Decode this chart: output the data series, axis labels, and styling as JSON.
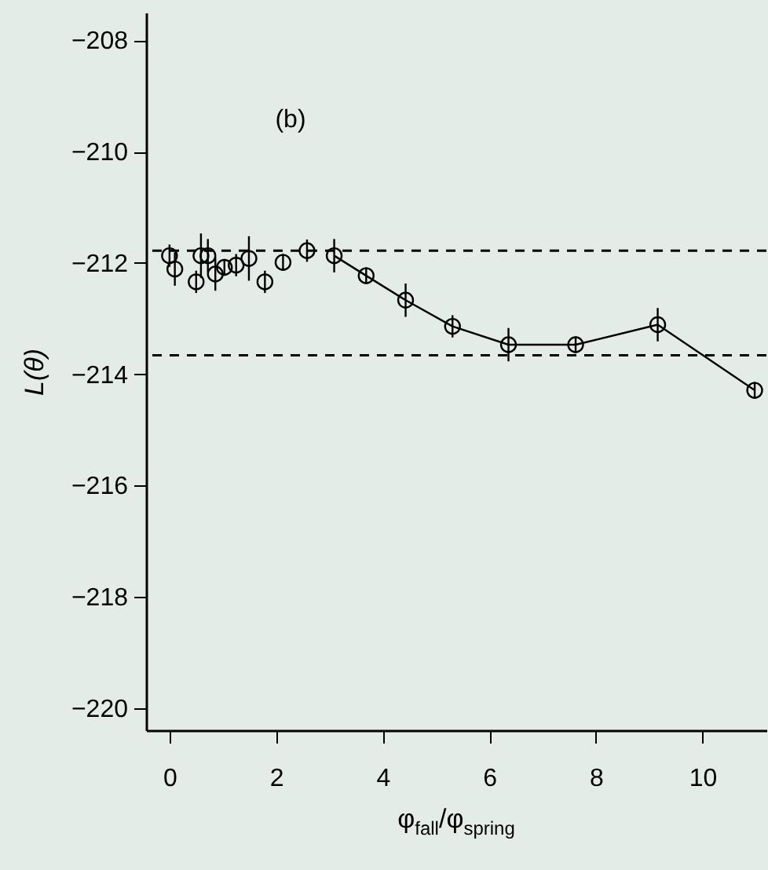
{
  "chart_data": {
    "type": "scatter",
    "xlabel": "φ$_{fall}$/φ$_{spring}$",
    "ylabel": "L(θ)",
    "annotations": [
      "(b)"
    ],
    "xlim": [
      -0.44,
      11.2
    ],
    "xticks": [
      0,
      2,
      4,
      6,
      8,
      10
    ],
    "ylim": [
      -220.4,
      -207.5
    ],
    "yticks": [
      -208,
      -210,
      -212,
      -214,
      -216,
      -218,
      -220
    ],
    "marker": "circle",
    "grid": false,
    "series": [
      {
        "color": "#000000",
        "x": [
          0,
          0.1,
          0.5,
          0.59,
          0.72,
          0.86,
          1.03,
          1.25,
          1.49,
          1.79,
          2.13,
          2.58,
          3.09,
          3.69,
          4.43,
          5.31,
          6.36,
          7.62,
          9.16,
          10.98
        ],
        "values": [
          -211.87,
          -212.11,
          -212.34,
          -211.87,
          -211.87,
          -212.2,
          -212.08,
          -212.04,
          -211.92,
          -212.34,
          -211.99,
          -211.78,
          -211.87,
          -212.23,
          -212.67,
          -213.14,
          -213.47,
          -213.47,
          -213.11,
          -214.29
        ],
        "errors": [
          0.2,
          0.3,
          0.2,
          0.4,
          0.3,
          0.3,
          0.15,
          0.2,
          0.4,
          0.2,
          0.15,
          0.2,
          0.3,
          0.15,
          0.3,
          0.2,
          0.3,
          0.15,
          0.3,
          0.15
        ]
      },
      {
        "type": "line",
        "color": "#000000",
        "marker": "none",
        "x": [
          3.09,
          3.69,
          4.43,
          5.31,
          6.36,
          7.62,
          9.16,
          10.98
        ],
        "values": [
          -211.87,
          -212.23,
          -212.67,
          -213.14,
          -213.47,
          -213.47,
          -213.11,
          -214.29
        ]
      }
    ],
    "ref_lines": [
      {
        "axis": "y",
        "value": -211.78,
        "line_style": "dashed",
        "color": "#000000"
      },
      {
        "axis": "y",
        "value": -213.66,
        "line_style": "dashed",
        "color": "#000000"
      }
    ]
  }
}
